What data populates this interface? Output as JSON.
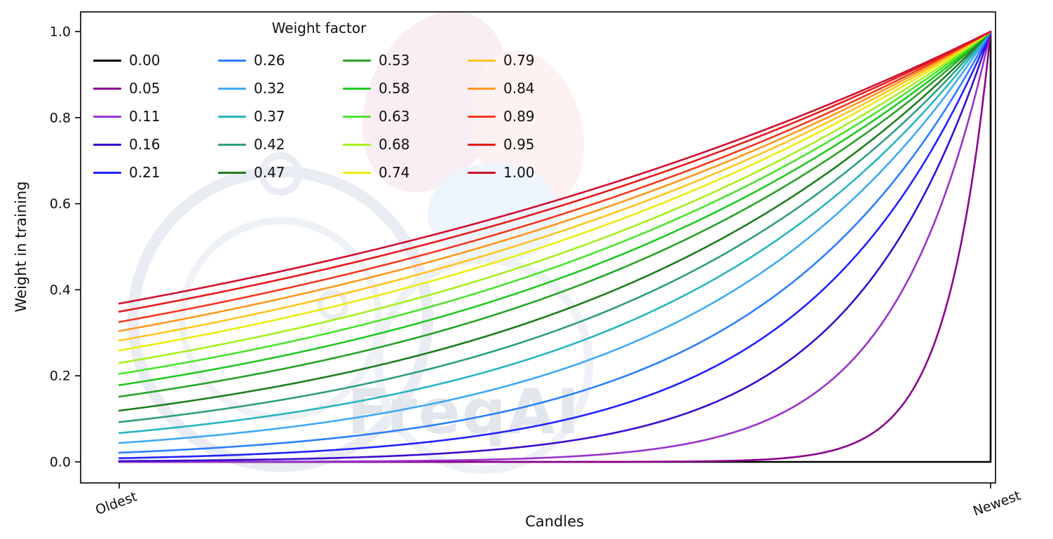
{
  "figure": {
    "watermark": "FreqAI"
  },
  "chart_data": {
    "type": "line",
    "title": "",
    "xlabel": "Candles",
    "ylabel": "Weight in training",
    "x_range_labels": [
      "Oldest",
      "Newest"
    ],
    "ylim": [
      0,
      1
    ],
    "y_ticks": [
      0,
      0.2,
      0.4,
      0.6,
      0.8,
      1.0
    ],
    "y_tick_labels": [
      "0.0",
      "0.2",
      "0.4",
      "0.6",
      "0.8",
      "1.0"
    ],
    "grid": false,
    "legend_title": "Weight factor",
    "legend_position": "upper left",
    "legend_columns": 4,
    "curve_formula": "weight(t) = exp(-(1 - t) / factor) for factor > 0, with t in [0,1] spanning Oldest to Newest; factor = 0 stays at 0 until Newest where all curves converge at weight 1.0",
    "series": [
      {
        "label": "0.00",
        "factor": 0.0,
        "color": "#000000"
      },
      {
        "label": "0.05",
        "factor": 0.05,
        "color": "#8b008b"
      },
      {
        "label": "0.11",
        "factor": 0.11,
        "color": "#9932cc"
      },
      {
        "label": "0.16",
        "factor": 0.16,
        "color": "#3a0ccd"
      },
      {
        "label": "0.21",
        "factor": 0.21,
        "color": "#2121ff"
      },
      {
        "label": "0.26",
        "factor": 0.26,
        "color": "#2a7fff"
      },
      {
        "label": "0.32",
        "factor": 0.32,
        "color": "#3fa9f5"
      },
      {
        "label": "0.37",
        "factor": 0.37,
        "color": "#26b5c0"
      },
      {
        "label": "0.42",
        "factor": 0.42,
        "color": "#2d9e7f"
      },
      {
        "label": "0.47",
        "factor": 0.47,
        "color": "#1e7d1e"
      },
      {
        "label": "0.53",
        "factor": 0.53,
        "color": "#27a327"
      },
      {
        "label": "0.58",
        "factor": 0.58,
        "color": "#21c821"
      },
      {
        "label": "0.63",
        "factor": 0.63,
        "color": "#49e52c"
      },
      {
        "label": "0.68",
        "factor": 0.68,
        "color": "#a7ef1e"
      },
      {
        "label": "0.74",
        "factor": 0.74,
        "color": "#ecec13"
      },
      {
        "label": "0.79",
        "factor": 0.79,
        "color": "#ffc41f"
      },
      {
        "label": "0.84",
        "factor": 0.84,
        "color": "#ff971c"
      },
      {
        "label": "0.89",
        "factor": 0.89,
        "color": "#f4381f"
      },
      {
        "label": "0.95",
        "factor": 0.95,
        "color": "#e61b1b"
      },
      {
        "label": "1.00",
        "factor": 1.0,
        "color": "#cf1030"
      }
    ]
  }
}
